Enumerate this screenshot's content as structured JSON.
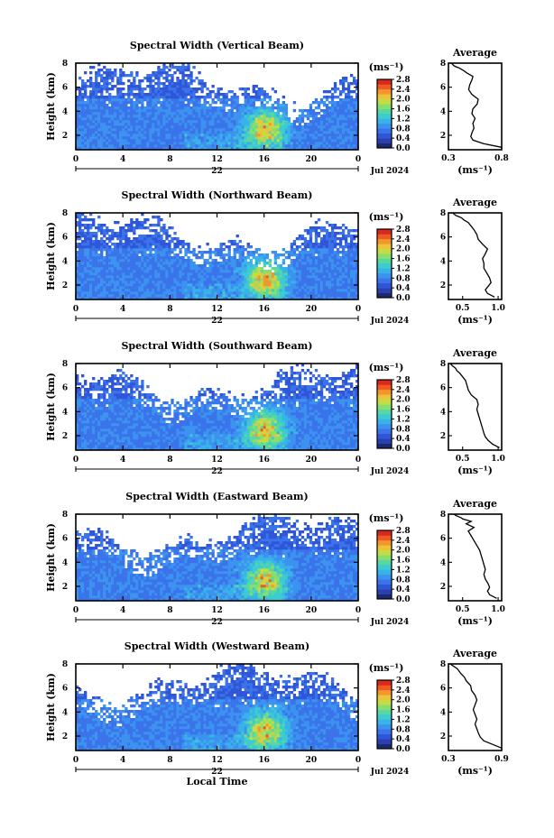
{
  "colors": {
    "colorbar": [
      "#1a2a6e",
      "#2a3fb0",
      "#2f56d8",
      "#3a73ea",
      "#3c93ef",
      "#38b2e8",
      "#3bcbd0",
      "#57d7a4",
      "#8ade6c",
      "#c6dc45",
      "#ecc43a",
      "#f4962e",
      "#ef5a22",
      "#d9281d"
    ],
    "no_data": "#ffffff",
    "frame": "#000000"
  },
  "shared": {
    "date_label": "Jul 2024",
    "day_label": "22",
    "x_axis_label": "Local Time",
    "unit_label": "(ms⁻¹)",
    "avg_title": "Average",
    "y_axis_label": "Height (km)"
  },
  "chart_data": [
    {
      "type": "heatmap",
      "title": "Spectral Width (Vertical Beam)",
      "ylabel": "Height (km)",
      "xlabel": "",
      "x_ticks": [
        "0",
        "4",
        "8",
        "12",
        "16",
        "20",
        "0"
      ],
      "y_ticks": [
        "2",
        "4",
        "6",
        "8"
      ],
      "xlim": [
        0,
        24
      ],
      "ylim": [
        0.8,
        8
      ],
      "colorbar": {
        "ticks": [
          "0.0",
          "0.4",
          "0.8",
          "1.2",
          "1.6",
          "2.0",
          "2.4",
          "2.8"
        ],
        "range": [
          0,
          2.8
        ]
      },
      "average": {
        "title": "Average",
        "xlabel": "(ms⁻¹)",
        "x_ticks": [
          "0.3",
          "0.8"
        ],
        "xlim": [
          0.3,
          0.8
        ],
        "y_ticks": [
          "2",
          "4",
          "6",
          "8"
        ],
        "x": [
          0.82,
          0.63,
          0.53,
          0.51,
          0.52,
          0.54,
          0.53,
          0.55,
          0.52,
          0.53,
          0.57,
          0.58,
          0.52,
          0.49,
          0.5,
          0.52,
          0.53,
          0.47,
          0.44,
          0.4,
          0.37,
          0.35,
          0.34,
          0.33
        ],
        "y": [
          1.0,
          1.3,
          1.6,
          1.9,
          2.2,
          2.6,
          3.0,
          3.4,
          3.8,
          4.2,
          4.6,
          5.0,
          5.4,
          5.8,
          6.2,
          6.6,
          6.9,
          7.2,
          7.4,
          7.6,
          7.7,
          7.8,
          7.9,
          8.0
        ]
      }
    },
    {
      "type": "heatmap",
      "title": "Spectral Width (Northward Beam)",
      "ylabel": "Height (km)",
      "xlabel": "",
      "x_ticks": [
        "0",
        "4",
        "8",
        "12",
        "16",
        "20",
        "0"
      ],
      "y_ticks": [
        "2",
        "4",
        "6",
        "8"
      ],
      "xlim": [
        0,
        24
      ],
      "ylim": [
        0.8,
        8
      ],
      "colorbar": {
        "ticks": [
          "0.0",
          "0.4",
          "0.8",
          "1.2",
          "1.6",
          "2.0",
          "2.4",
          "2.8"
        ],
        "range": [
          0,
          2.8
        ]
      },
      "average": {
        "title": "Average",
        "xlabel": "(ms⁻¹)",
        "x_ticks": [
          "0.5",
          "1.0"
        ],
        "xlim": [
          0.3,
          1.05
        ],
        "y_ticks": [
          "2",
          "4",
          "6",
          "8"
        ],
        "x": [
          0.95,
          0.85,
          0.82,
          0.86,
          0.9,
          0.88,
          0.84,
          0.8,
          0.8,
          0.78,
          0.82,
          0.85,
          0.78,
          0.72,
          0.7,
          0.66,
          0.62,
          0.58,
          0.52,
          0.48,
          0.44,
          0.4,
          0.38,
          0.36
        ],
        "y": [
          1.0,
          1.3,
          1.6,
          1.9,
          2.2,
          2.6,
          3.0,
          3.4,
          3.8,
          4.2,
          4.6,
          5.0,
          5.4,
          5.8,
          6.2,
          6.6,
          6.9,
          7.2,
          7.4,
          7.6,
          7.7,
          7.8,
          7.9,
          8.0
        ]
      }
    },
    {
      "type": "heatmap",
      "title": "Spectral Width (Southward Beam)",
      "ylabel": "Height (km)",
      "xlabel": "",
      "x_ticks": [
        "0",
        "4",
        "8",
        "12",
        "16",
        "20",
        "0"
      ],
      "y_ticks": [
        "2",
        "4",
        "6",
        "8"
      ],
      "xlim": [
        0,
        24
      ],
      "ylim": [
        0.8,
        8
      ],
      "colorbar": {
        "ticks": [
          "0.0",
          "0.4",
          "0.8",
          "1.2",
          "1.6",
          "2.0",
          "2.4",
          "2.8"
        ],
        "range": [
          0,
          2.8
        ]
      },
      "average": {
        "title": "Average",
        "xlabel": "(ms⁻¹)",
        "x_ticks": [
          "0.5",
          "1.0"
        ],
        "xlim": [
          0.3,
          1.05
        ],
        "y_ticks": [
          "2",
          "4",
          "6",
          "8"
        ],
        "x": [
          1.02,
          0.92,
          0.86,
          0.82,
          0.8,
          0.78,
          0.76,
          0.74,
          0.72,
          0.7,
          0.72,
          0.7,
          0.62,
          0.58,
          0.56,
          0.54,
          0.5,
          0.46,
          0.42,
          0.4,
          0.38,
          0.36,
          0.34,
          0.33
        ],
        "y": [
          1.0,
          1.3,
          1.6,
          1.9,
          2.2,
          2.6,
          3.0,
          3.4,
          3.8,
          4.2,
          4.6,
          5.0,
          5.4,
          5.8,
          6.2,
          6.6,
          6.9,
          7.2,
          7.4,
          7.6,
          7.7,
          7.8,
          7.9,
          8.0
        ]
      }
    },
    {
      "type": "heatmap",
      "title": "Spectral Width (Eastward Beam)",
      "ylabel": "Height (km)",
      "xlabel": "",
      "x_ticks": [
        "0",
        "4",
        "8",
        "12",
        "16",
        "20",
        "0"
      ],
      "y_ticks": [
        "2",
        "4",
        "6",
        "8"
      ],
      "xlim": [
        0,
        24
      ],
      "ylim": [
        0.8,
        8
      ],
      "colorbar": {
        "ticks": [
          "0.0",
          "0.4",
          "0.8",
          "1.2",
          "1.6",
          "2.0",
          "2.4",
          "2.8"
        ],
        "range": [
          0,
          2.8
        ]
      },
      "average": {
        "title": "Average",
        "xlabel": "(ms⁻¹)",
        "x_ticks": [
          "0.5",
          "1.0"
        ],
        "xlim": [
          0.3,
          1.05
        ],
        "y_ticks": [
          "2",
          "4",
          "6",
          "8"
        ],
        "x": [
          0.98,
          0.88,
          0.85,
          0.88,
          0.86,
          0.82,
          0.8,
          0.82,
          0.8,
          0.78,
          0.76,
          0.74,
          0.7,
          0.66,
          0.62,
          0.58,
          0.66,
          0.55,
          0.62,
          0.5,
          0.48,
          0.44,
          0.4,
          0.38
        ],
        "y": [
          1.0,
          1.3,
          1.6,
          1.9,
          2.2,
          2.6,
          3.0,
          3.4,
          3.8,
          4.2,
          4.6,
          5.0,
          5.4,
          5.8,
          6.2,
          6.6,
          6.9,
          7.2,
          7.4,
          7.6,
          7.7,
          7.8,
          7.9,
          8.0
        ]
      }
    },
    {
      "type": "heatmap",
      "title": "Spectral Width (Westward Beam)",
      "ylabel": "Height (km)",
      "xlabel": "Local Time",
      "x_ticks": [
        "0",
        "4",
        "8",
        "12",
        "16",
        "20",
        "0"
      ],
      "y_ticks": [
        "2",
        "4",
        "6",
        "8"
      ],
      "xlim": [
        0,
        24
      ],
      "ylim": [
        0.8,
        8
      ],
      "colorbar": {
        "ticks": [
          "0.0",
          "0.4",
          "0.8",
          "1.2",
          "1.6",
          "2.0",
          "2.4",
          "2.8"
        ],
        "range": [
          0,
          2.8
        ]
      },
      "average": {
        "title": "Average",
        "xlabel": "(ms⁻¹)",
        "x_ticks": [
          "0.3",
          "0.9"
        ],
        "xlim": [
          0.3,
          0.9
        ],
        "y_ticks": [
          "2",
          "4",
          "6",
          "8"
        ],
        "x": [
          0.9,
          0.8,
          0.7,
          0.66,
          0.64,
          0.62,
          0.6,
          0.62,
          0.6,
          0.58,
          0.6,
          0.62,
          0.6,
          0.56,
          0.55,
          0.5,
          0.48,
          0.44,
          0.42,
          0.4,
          0.38,
          0.36,
          0.34,
          0.32
        ],
        "y": [
          1.0,
          1.3,
          1.6,
          1.9,
          2.2,
          2.6,
          3.0,
          3.4,
          3.8,
          4.2,
          4.6,
          5.0,
          5.4,
          5.8,
          6.2,
          6.6,
          6.9,
          7.2,
          7.4,
          7.6,
          7.7,
          7.8,
          7.9,
          8.0
        ]
      }
    }
  ]
}
